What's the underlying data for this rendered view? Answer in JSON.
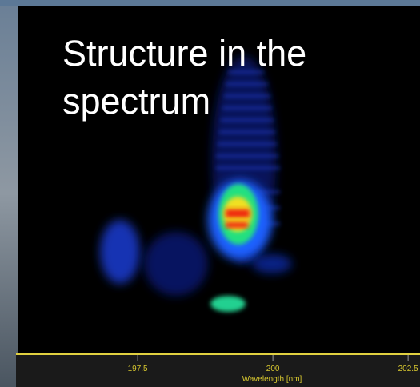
{
  "slide": {
    "title_lines": [
      "Structure in the",
      "spectrum"
    ]
  },
  "axis": {
    "label": "Wavelength [nm]",
    "xlim": [
      195.25,
      202.72
    ],
    "ticks": [
      197.5,
      200,
      202.5
    ]
  }
}
